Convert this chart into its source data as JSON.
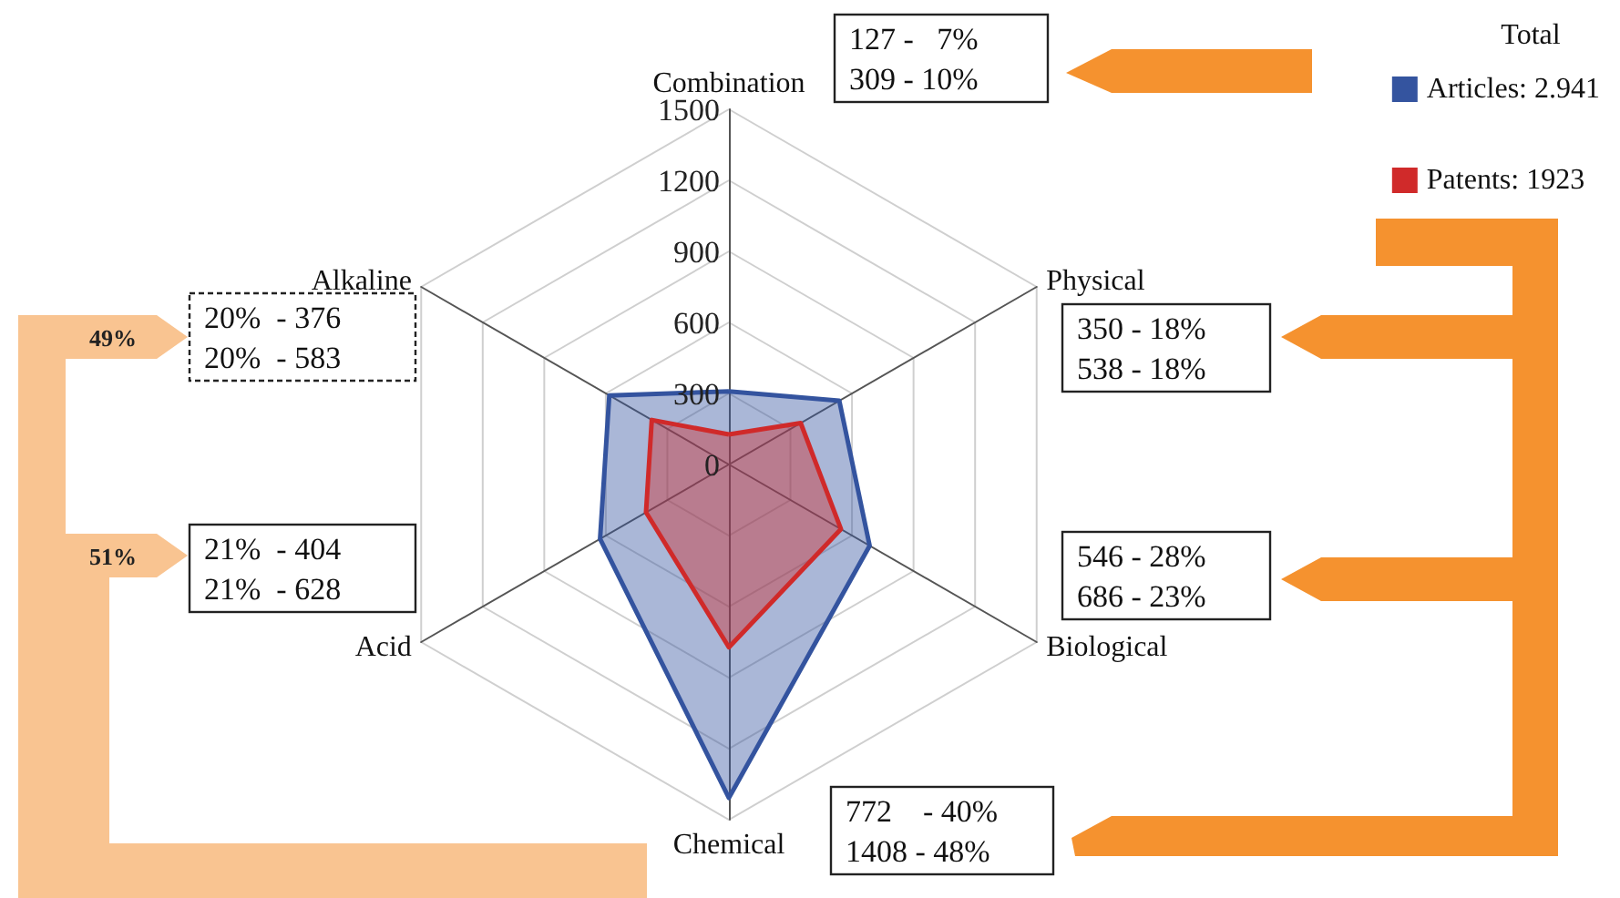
{
  "chart_data": {
    "type": "radar",
    "categories": [
      "Combination",
      "Physical",
      "Biological",
      "Chemical",
      "Acid",
      "Alkaline"
    ],
    "series": [
      {
        "name": "Articles: 2.941",
        "color": "#34549f",
        "values": [
          309,
          538,
          686,
          1408,
          628,
          583
        ]
      },
      {
        "name": "Patents: 1923",
        "color": "#d02a2a",
        "values": [
          127,
          350,
          546,
          772,
          404,
          376
        ]
      }
    ],
    "ylim": [
      0,
      1500
    ],
    "yticks": [
      0,
      300,
      600,
      900,
      1200,
      1500
    ],
    "grid": true,
    "legend": "top right",
    "legend_title": "Total",
    "marker": "none",
    "line_style": "solid",
    "annotations": [
      "127 -   7%",
      "309 - 10%",
      "350 - 18%",
      "538 - 18%",
      "546 - 28%",
      "686 - 23%",
      "772    - 40%",
      "1408 - 48%",
      "21%  - 404",
      "21%  - 628",
      "20%  - 376",
      "20%  - 583",
      "49%",
      "51%"
    ]
  }
}
